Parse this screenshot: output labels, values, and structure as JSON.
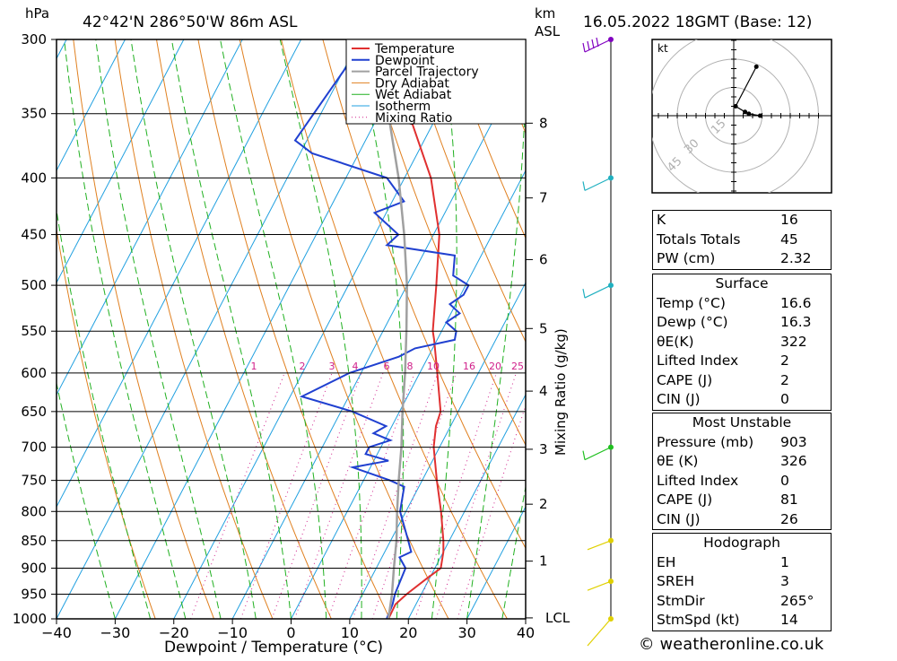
{
  "header": {
    "hpa_label": "hPa",
    "location": "42°42'N  286°50'W  86m  ASL",
    "km_label": "km",
    "asl_label": "ASL",
    "datetime": "16.05.2022  18GMT  (Base: 12)"
  },
  "chart_data": {
    "type": "line",
    "title": "42°42'N  286°50'W  86m  ASL",
    "xlabel": "Dewpoint / Temperature (°C)",
    "ylabel": "hPa",
    "xlim": [
      -40,
      40
    ],
    "ylim": [
      1000,
      300
    ],
    "y_scale": "log",
    "grid": true,
    "legend_position": "top-right",
    "x_ticks": [
      "−40",
      "−30",
      "−20",
      "−10",
      "0",
      "10",
      "20",
      "30",
      "40"
    ],
    "x_tick_values": [
      -40,
      -30,
      -20,
      -10,
      0,
      10,
      20,
      30,
      40
    ],
    "pressure_levels": [
      300,
      350,
      400,
      450,
      500,
      550,
      600,
      650,
      700,
      750,
      800,
      850,
      900,
      950,
      1000
    ],
    "legend": [
      "Temperature",
      "Dewpoint",
      "Parcel Trajectory",
      "Dry Adiabat",
      "Wet Adiabat",
      "Isotherm",
      "Mixing Ratio"
    ],
    "series": [
      {
        "name": "Temperature",
        "color": "#e03030",
        "pressure": [
          1000,
          970,
          950,
          920,
          900,
          870,
          850,
          800,
          750,
          700,
          670,
          650,
          600,
          560,
          550,
          500,
          450,
          400,
          350,
          300
        ],
        "temperature": [
          16.6,
          16.5,
          17.5,
          19.5,
          21.0,
          20.0,
          19.0,
          16.0,
          12.5,
          9.0,
          7.5,
          7.0,
          3.0,
          -0.5,
          -1.5,
          -5.0,
          -9.0,
          -15.5,
          -25.0,
          -35.0
        ]
      },
      {
        "name": "Dewpoint",
        "color": "#2040d0",
        "pressure": [
          1000,
          970,
          950,
          900,
          880,
          870,
          850,
          800,
          760,
          750,
          730,
          720,
          710,
          700,
          690,
          680,
          670,
          650,
          630,
          600,
          580,
          570,
          560,
          550,
          540,
          530,
          520,
          510,
          500,
          490,
          470,
          460,
          450,
          430,
          420,
          400,
          380,
          370,
          300
        ],
        "temperature": [
          16.3,
          16.0,
          15.5,
          15.0,
          13.0,
          14.5,
          13.0,
          9.0,
          7.5,
          4.5,
          -3.0,
          2.5,
          -2.0,
          -2.0,
          1.0,
          -2.5,
          -1.0,
          -8.0,
          -18.0,
          -12.0,
          -5.0,
          -3.0,
          3.0,
          2.5,
          0.0,
          1.5,
          -1.0,
          0.5,
          0.5,
          -3.0,
          -4.5,
          -17.0,
          -16.0,
          -22.0,
          -18.0,
          -23.0,
          -38.0,
          -42.0,
          -39.0
        ]
      },
      {
        "name": "Parcel Trajectory",
        "color": "#a0a0a0",
        "pressure": [
          1000,
          950,
          900,
          850,
          800,
          750,
          700,
          650,
          600,
          550,
          500,
          450,
          400,
          350,
          300
        ],
        "temperature": [
          16.6,
          15.0,
          13.0,
          11.0,
          8.5,
          6.0,
          3.5,
          0.5,
          -2.5,
          -6.0,
          -10.0,
          -15.0,
          -21.0,
          -28.5,
          -38.0
        ]
      }
    ],
    "mixing_ratio_labels": [
      "1",
      "2",
      "3",
      "4",
      "6",
      "8",
      "10",
      "16",
      "20",
      "25"
    ],
    "mixing_ratio_values": [
      1,
      2,
      3,
      4,
      6,
      8,
      10,
      16,
      20,
      25
    ],
    "mixing_ratio_axis_label": "Mixing Ratio (g/kg)",
    "km_ticks": [
      "8",
      "7",
      "6",
      "5",
      "4",
      "3",
      "2",
      "1",
      "LCL"
    ],
    "km_tick_pressures": [
      357,
      417,
      474,
      547,
      623,
      703,
      788,
      887,
      998
    ],
    "wind_profile": {
      "pressures": [
        300,
        400,
        500,
        700,
        850,
        925,
        1000
      ],
      "colors": [
        "#8000c0",
        "#20b0c0",
        "#20b0c0",
        "#20c020",
        "#e0d000",
        "#e0d000",
        "#e0d000"
      ]
    }
  },
  "hodograph": {
    "unit_label": "kt",
    "ring_labels": [
      "15",
      "30",
      "45"
    ],
    "points_uv": [
      [
        14,
        0
      ],
      [
        8,
        1
      ],
      [
        6,
        2
      ],
      [
        1,
        5
      ],
      [
        12,
        26
      ]
    ]
  },
  "indices": {
    "block1": [
      {
        "label": "K",
        "value": "16"
      },
      {
        "label": "Totals Totals",
        "value": "45"
      },
      {
        "label": "PW (cm)",
        "value": "2.32"
      }
    ],
    "surface": {
      "title": "Surface",
      "rows": [
        {
          "label": "Temp (°C)",
          "value": "16.6"
        },
        {
          "label": "Dewp (°C)",
          "value": "16.3"
        },
        {
          "label": "θE(K)",
          "value": "322"
        },
        {
          "label": "Lifted Index",
          "value": "2"
        },
        {
          "label": "CAPE (J)",
          "value": "2"
        },
        {
          "label": "CIN (J)",
          "value": "0"
        }
      ]
    },
    "most_unstable": {
      "title": "Most Unstable",
      "rows": [
        {
          "label": "Pressure (mb)",
          "value": "903"
        },
        {
          "label": "θE (K)",
          "value": "326"
        },
        {
          "label": "Lifted Index",
          "value": "0"
        },
        {
          "label": "CAPE (J)",
          "value": "81"
        },
        {
          "label": "CIN (J)",
          "value": "26"
        }
      ]
    },
    "hodograph_block": {
      "title": "Hodograph",
      "rows": [
        {
          "label": "EH",
          "value": "1"
        },
        {
          "label": "SREH",
          "value": "3"
        },
        {
          "label": "StmDir",
          "value": "265°"
        },
        {
          "label": "StmSpd (kt)",
          "value": "14"
        }
      ]
    }
  },
  "footer": {
    "credit": "© weatheronline.co.uk"
  }
}
